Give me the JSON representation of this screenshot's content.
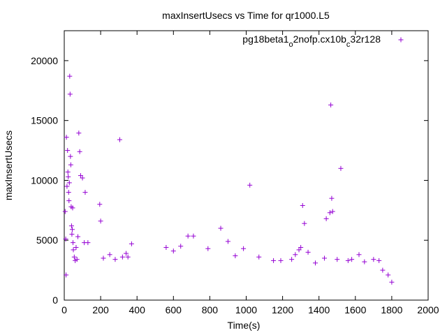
{
  "chart_data": {
    "type": "scatter",
    "title": "maxInsertUsecs vs Time for qr1000.L5",
    "xlabel": "Time(s)",
    "ylabel": "maxInsertUsecs",
    "xlim": [
      0,
      2000
    ],
    "ylim": [
      0,
      22500
    ],
    "x_ticks": [
      "0",
      "200",
      "400",
      "600",
      "800",
      "1000",
      "1200",
      "1400",
      "1600",
      "1800",
      "2000"
    ],
    "y_ticks": [
      "0",
      "5000",
      "10000",
      "15000",
      "20000"
    ],
    "grid": false,
    "legend_position": "top-right",
    "legend": {
      "base": "pg18beta1",
      "sub1": "o",
      "mid": "2nofp.cx10b",
      "sub2": "c",
      "tail": "32r128"
    },
    "series": [
      {
        "name": "pg18beta1_o2nofp.cx10b_c32r128",
        "color": "#9400d3",
        "marker": "+",
        "points": [
          [
            5,
            7400
          ],
          [
            8,
            5100
          ],
          [
            10,
            2100
          ],
          [
            12,
            13600
          ],
          [
            15,
            9500
          ],
          [
            18,
            12500
          ],
          [
            20,
            10700
          ],
          [
            22,
            10300
          ],
          [
            24,
            9000
          ],
          [
            26,
            8300
          ],
          [
            28,
            9800
          ],
          [
            30,
            18700
          ],
          [
            32,
            17200
          ],
          [
            34,
            12000
          ],
          [
            36,
            11300
          ],
          [
            38,
            7800
          ],
          [
            40,
            6200
          ],
          [
            42,
            5500
          ],
          [
            44,
            5900
          ],
          [
            46,
            7700
          ],
          [
            48,
            4800
          ],
          [
            50,
            4200
          ],
          [
            55,
            3600
          ],
          [
            60,
            3300
          ],
          [
            65,
            4400
          ],
          [
            70,
            3400
          ],
          [
            75,
            5300
          ],
          [
            80,
            13950
          ],
          [
            85,
            12400
          ],
          [
            90,
            10400
          ],
          [
            100,
            10200
          ],
          [
            110,
            4800
          ],
          [
            115,
            9000
          ],
          [
            130,
            4800
          ],
          [
            195,
            8000
          ],
          [
            200,
            6600
          ],
          [
            215,
            3500
          ],
          [
            250,
            3800
          ],
          [
            280,
            3400
          ],
          [
            305,
            13400
          ],
          [
            320,
            3600
          ],
          [
            340,
            3900
          ],
          [
            350,
            3600
          ],
          [
            370,
            4700
          ],
          [
            560,
            4400
          ],
          [
            600,
            4100
          ],
          [
            640,
            4500
          ],
          [
            680,
            5350
          ],
          [
            710,
            5350
          ],
          [
            790,
            4300
          ],
          [
            860,
            6000
          ],
          [
            900,
            4900
          ],
          [
            940,
            3700
          ],
          [
            985,
            4300
          ],
          [
            1020,
            9600
          ],
          [
            1070,
            3600
          ],
          [
            1150,
            3300
          ],
          [
            1190,
            3300
          ],
          [
            1250,
            3400
          ],
          [
            1270,
            3800
          ],
          [
            1290,
            4200
          ],
          [
            1300,
            4400
          ],
          [
            1310,
            7900
          ],
          [
            1320,
            6400
          ],
          [
            1340,
            4000
          ],
          [
            1380,
            3100
          ],
          [
            1430,
            3500
          ],
          [
            1440,
            6800
          ],
          [
            1460,
            7300
          ],
          [
            1465,
            16300
          ],
          [
            1470,
            8500
          ],
          [
            1475,
            7400
          ],
          [
            1500,
            3400
          ],
          [
            1520,
            11000
          ],
          [
            1560,
            3300
          ],
          [
            1580,
            3400
          ],
          [
            1620,
            3800
          ],
          [
            1650,
            3200
          ],
          [
            1700,
            3400
          ],
          [
            1730,
            3300
          ],
          [
            1750,
            2500
          ],
          [
            1780,
            2100
          ],
          [
            1800,
            1500
          ]
        ]
      }
    ]
  }
}
